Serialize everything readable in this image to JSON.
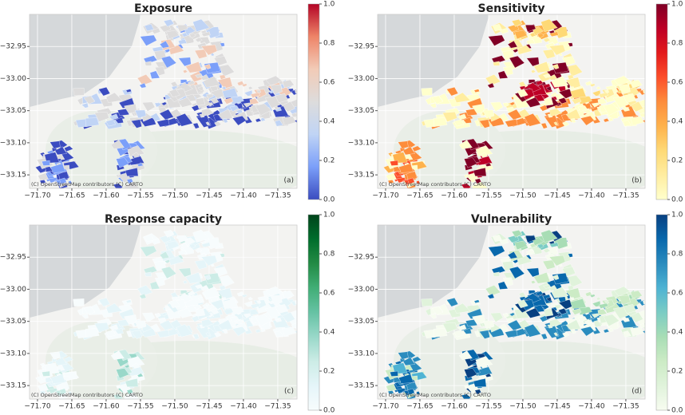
{
  "panels": [
    {
      "title": "Exposure",
      "panel_label": "(a)",
      "attribution": "(C) OpenStreetMap contributors (C) CARTO",
      "xlim": [
        -71.7116,
        -71.322
      ],
      "ylim": [
        -33.171,
        -32.9
      ],
      "xticks": [
        {
          "value": -71.7,
          "label": "−71.70"
        },
        {
          "value": -71.65,
          "label": "−71.65"
        },
        {
          "value": -71.6,
          "label": "−71.60"
        },
        {
          "value": -71.55,
          "label": "−71.55"
        },
        {
          "value": -71.5,
          "label": "−71.50"
        },
        {
          "value": -71.45,
          "label": "−71.45"
        },
        {
          "value": -71.4,
          "label": "−71.40"
        },
        {
          "value": -71.35,
          "label": "−71.35"
        }
      ],
      "yticks": [
        {
          "value": -32.95,
          "label": "−32.95"
        },
        {
          "value": -33.0,
          "label": "−33.00"
        },
        {
          "value": -33.05,
          "label": "−33.05"
        },
        {
          "value": -33.1,
          "label": "−33.10"
        },
        {
          "value": -33.15,
          "label": "−33.15"
        }
      ],
      "colorbar": {
        "lim": [
          0,
          1
        ],
        "ticks": [
          {
            "value": 0,
            "label": "0.0"
          },
          0.2,
          0.4,
          0.6,
          0.8,
          {
            "value": 1,
            "label": "1.0"
          }
        ],
        "colormap": [
          "#3b4cc0",
          "#7b9ff9",
          "#c0d4f5",
          "#dddcdc",
          "#f2cbb7",
          "#ee8468",
          "#b40426"
        ]
      }
    },
    {
      "title": "Sensitivity",
      "panel_label": "(b)",
      "attribution": "(C) OpenStreetMap contributors (C) CARTO",
      "xlim": [
        -71.7116,
        -71.322
      ],
      "ylim": [
        -33.171,
        -32.9
      ],
      "xticks": [
        {
          "value": -71.7,
          "label": "−71.70"
        },
        {
          "value": -71.65,
          "label": "−71.65"
        },
        {
          "value": -71.6,
          "label": "−71.60"
        },
        {
          "value": -71.55,
          "label": "−71.55"
        },
        {
          "value": -71.5,
          "label": "−71.50"
        },
        {
          "value": -71.45,
          "label": "−71.45"
        },
        {
          "value": -71.4,
          "label": "−71.40"
        },
        {
          "value": -71.35,
          "label": "−71.35"
        }
      ],
      "yticks": [
        {
          "value": -32.95,
          "label": "−32.95"
        },
        {
          "value": -33.0,
          "label": "−33.00"
        },
        {
          "value": -33.05,
          "label": "−33.05"
        },
        {
          "value": -33.1,
          "label": "−33.10"
        },
        {
          "value": -33.15,
          "label": "−33.15"
        }
      ],
      "colorbar": {
        "lim": [
          0,
          1
        ],
        "ticks": [
          {
            "value": 0,
            "label": "0.0"
          },
          0.2,
          0.4,
          0.6,
          0.8,
          {
            "value": 1,
            "label": "1.0"
          }
        ],
        "colormap": [
          "#ffffcc",
          "#ffeda0",
          "#fed976",
          "#feb24c",
          "#fd8d3c",
          "#fc4e2a",
          "#e31a1c",
          "#bd0026",
          "#800026"
        ]
      }
    },
    {
      "title": "Response capacity",
      "panel_label": "(c)",
      "attribution": "(C) OpenStreetMap contributors (C) CARTO",
      "xlim": [
        -71.7116,
        -71.322
      ],
      "ylim": [
        -33.171,
        -32.9
      ],
      "xticks": [
        {
          "value": -71.7,
          "label": "−71.70"
        },
        {
          "value": -71.65,
          "label": "−71.65"
        },
        {
          "value": -71.6,
          "label": "−71.60"
        },
        {
          "value": -71.55,
          "label": "−71.55"
        },
        {
          "value": -71.5,
          "label": "−71.50"
        },
        {
          "value": -71.45,
          "label": "−71.45"
        },
        {
          "value": -71.4,
          "label": "−71.40"
        },
        {
          "value": -71.35,
          "label": "−71.35"
        }
      ],
      "yticks": [
        {
          "value": -32.95,
          "label": "−32.95"
        },
        {
          "value": -33.0,
          "label": "−33.00"
        },
        {
          "value": -33.05,
          "label": "−33.05"
        },
        {
          "value": -33.1,
          "label": "−33.10"
        },
        {
          "value": -33.15,
          "label": "−33.15"
        }
      ],
      "colorbar": {
        "lim": [
          0,
          1
        ],
        "ticks": [
          {
            "value": 0,
            "label": "0.0"
          },
          0.2,
          0.4,
          0.6,
          0.8,
          {
            "value": 1,
            "label": "1.0"
          }
        ],
        "colormap": [
          "#f7fcfd",
          "#e5f5f9",
          "#ccece6",
          "#99d8c9",
          "#66c2a4",
          "#41ae76",
          "#238b45",
          "#006d2c",
          "#00441b"
        ]
      }
    },
    {
      "title": "Vulnerability",
      "panel_label": "(d)",
      "attribution": "(C) OpenStreetMap contributors (C) CARTO",
      "xlim": [
        -71.7116,
        -71.322
      ],
      "ylim": [
        -33.171,
        -32.9
      ],
      "xticks": [
        {
          "value": -71.7,
          "label": "−71.70"
        },
        {
          "value": -71.65,
          "label": "−71.65"
        },
        {
          "value": -71.6,
          "label": "−71.60"
        },
        {
          "value": -71.55,
          "label": "−71.55"
        },
        {
          "value": -71.5,
          "label": "−71.50"
        },
        {
          "value": -71.45,
          "label": "−71.45"
        },
        {
          "value": -71.4,
          "label": "−71.40"
        },
        {
          "value": -71.35,
          "label": "−71.35"
        }
      ],
      "yticks": [
        {
          "value": -32.95,
          "label": "−32.95"
        },
        {
          "value": -33.0,
          "label": "−33.00"
        },
        {
          "value": -33.05,
          "label": "−33.05"
        },
        {
          "value": -33.1,
          "label": "−33.10"
        },
        {
          "value": -33.15,
          "label": "−33.15"
        }
      ],
      "colorbar": {
        "lim": [
          0,
          1
        ],
        "ticks": [
          {
            "value": 0,
            "label": "0.0"
          },
          0.2,
          0.4,
          0.6,
          0.8,
          {
            "value": 1,
            "label": "1.0"
          }
        ],
        "colormap": [
          "#f7fcf0",
          "#e0f3db",
          "#ccebc5",
          "#a8ddb5",
          "#7bccc4",
          "#4eb3d3",
          "#2b8cbe",
          "#0868ac",
          "#084081"
        ]
      }
    }
  ]
}
